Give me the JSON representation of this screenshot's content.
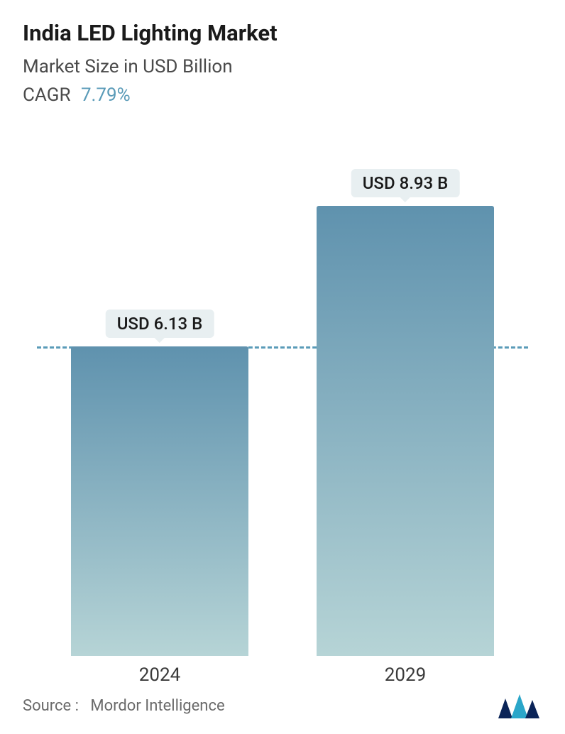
{
  "header": {
    "title": "India LED Lighting Market",
    "subtitle": "Market Size in USD Billion",
    "cagr_label": "CAGR",
    "cagr_value": "7.79%",
    "cagr_color": "#5a9bb8",
    "title_fontsize": 31,
    "subtitle_fontsize": 26
  },
  "chart": {
    "type": "bar",
    "categories": [
      "2024",
      "2029"
    ],
    "values": [
      6.13,
      8.93
    ],
    "value_labels": [
      "USD 6.13 B",
      "USD 8.93 B"
    ],
    "y_max": 9.5,
    "reference_line_value": 6.13,
    "reference_line_color": "#5a9bb8",
    "reference_line_dash": "dashed",
    "bar_gradient_top": "#5f92ae",
    "bar_gradient_bottom": "#b6d4d6",
    "bar_positions_pct": [
      25,
      75
    ],
    "bar_width_pct": 36,
    "value_label_bg": "#e8eff1",
    "value_label_fontsize": 24,
    "xlabel_fontsize": 26,
    "background_color": "#ffffff"
  },
  "footer": {
    "source_label": "Source :",
    "source_name": "Mordor Intelligence",
    "logo_colors": [
      "#0a2458",
      "#2aa6c9"
    ]
  }
}
